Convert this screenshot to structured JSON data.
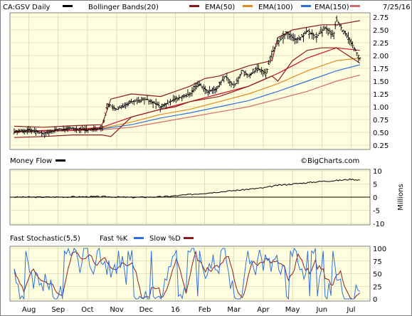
{
  "header": {
    "symbol_label": "CA:GSV Daily",
    "date_label": "7/25/16",
    "legend": [
      {
        "name": "Bollinger Bands(20)",
        "color": "#8b1a1a"
      },
      {
        "name": "EMA(50)",
        "color": "#c8102e"
      },
      {
        "name": "EMA(100)",
        "color": "#e08a1e"
      },
      {
        "name": "EMA(150)",
        "color": "#2f6fd8"
      }
    ]
  },
  "panels": {
    "money_flow": {
      "title": "Money Flow",
      "credit": "©BigCharts.com",
      "axis_label": "Millions"
    },
    "stochastic": {
      "title": "Fast Stochastic(5,5)",
      "fast_label": "Fast %K",
      "slow_label": "Slow %D"
    }
  },
  "colors": {
    "panel_bg": "#ffffe0",
    "price": "#000000",
    "bollinger": "#8b1a1a",
    "ema50": "#c8102e",
    "ema100": "#e08a1e",
    "ema150": "#2f6fd8",
    "ema_last": "#d46a6a",
    "fast_k": "#2f6fd8",
    "slow_d": "#8b1a1a"
  },
  "chart_data": [
    {
      "type": "line",
      "title": "CA:GSV Daily",
      "y_ticks": [
        "2.75",
        "2.50",
        "2.25",
        "2.00",
        "1.75",
        "1.50",
        "1.25",
        "1.00",
        "0.75",
        "0.50",
        "0.25"
      ],
      "ylim": [
        0.25,
        2.75
      ],
      "x_ticks": [
        "Aug",
        "Sep",
        "Oct",
        "Nov",
        "Dec",
        "16",
        "Feb",
        "Mar",
        "Apr",
        "May",
        "Jun",
        "Jul"
      ],
      "x_range": [
        0,
        12
      ],
      "series": [
        {
          "name": "CA:GSV Daily",
          "role": "price",
          "x": [
            0,
            0.5,
            1,
            1.5,
            2,
            2.5,
            3,
            3.2,
            3.5,
            4,
            4.5,
            5,
            5.5,
            6,
            6.3,
            6.6,
            6.9,
            7.2,
            7.5,
            7.8,
            8,
            8.3,
            8.6,
            8.8,
            9,
            9.3,
            9.6,
            9.9,
            10,
            10.3,
            10.6,
            10.9,
            11,
            11.2,
            11.4,
            11.6,
            11.8
          ],
          "y": [
            0.5,
            0.55,
            0.48,
            0.55,
            0.58,
            0.55,
            0.58,
            1.05,
            0.95,
            1.1,
            1.15,
            1.0,
            1.15,
            1.25,
            1.45,
            1.3,
            1.35,
            1.6,
            1.4,
            1.7,
            1.6,
            1.75,
            1.65,
            2.05,
            2.25,
            2.45,
            2.3,
            2.4,
            2.5,
            2.35,
            2.55,
            2.4,
            2.7,
            2.5,
            2.35,
            2.15,
            1.95
          ]
        },
        {
          "name": "Bollinger Bands(20)",
          "role": "bb_upper",
          "x": [
            0,
            1,
            2,
            3,
            3.3,
            4,
            5,
            5.5,
            6,
            6.5,
            7,
            7.5,
            8,
            8.8,
            9,
            9.5,
            10,
            10.5,
            11,
            11.8
          ],
          "y": [
            0.62,
            0.6,
            0.63,
            0.65,
            1.15,
            1.25,
            1.2,
            1.3,
            1.4,
            1.55,
            1.6,
            1.7,
            1.8,
            1.9,
            2.35,
            2.5,
            2.55,
            2.6,
            2.6,
            2.68
          ]
        },
        {
          "name": "Bollinger Bands(20)",
          "role": "bb_lower",
          "x": [
            0,
            1,
            2,
            3,
            3.3,
            4,
            5,
            5.5,
            6,
            6.5,
            7,
            7.5,
            8,
            8.8,
            9,
            9.5,
            10,
            10.5,
            11,
            11.8
          ],
          "y": [
            0.4,
            0.42,
            0.45,
            0.45,
            0.42,
            0.8,
            0.95,
            1.0,
            1.1,
            1.15,
            1.2,
            1.3,
            1.4,
            1.6,
            1.5,
            1.9,
            2.1,
            2.15,
            2.15,
            1.85
          ]
        },
        {
          "name": "EMA(50)",
          "role": "ema50",
          "x": [
            0,
            2,
            3,
            4,
            5,
            6,
            7,
            8,
            9,
            10,
            11,
            11.8
          ],
          "y": [
            0.52,
            0.55,
            0.6,
            0.8,
            0.95,
            1.1,
            1.25,
            1.4,
            1.65,
            1.95,
            2.15,
            2.1
          ]
        },
        {
          "name": "EMA(100)",
          "role": "ema100",
          "x": [
            0,
            2,
            3,
            4,
            5,
            6,
            7,
            8,
            9,
            10,
            11,
            11.8
          ],
          "y": [
            0.52,
            0.55,
            0.58,
            0.7,
            0.85,
            0.95,
            1.1,
            1.25,
            1.45,
            1.7,
            1.9,
            1.95
          ]
        },
        {
          "name": "EMA(150)",
          "role": "ema150",
          "x": [
            0,
            2,
            3,
            4,
            5,
            6,
            7,
            8,
            9,
            10,
            11,
            11.8
          ],
          "y": [
            0.52,
            0.55,
            0.57,
            0.65,
            0.78,
            0.88,
            1.0,
            1.12,
            1.3,
            1.5,
            1.7,
            1.82
          ]
        },
        {
          "name": "EMA(150)",
          "role": "ema_last",
          "x": [
            0,
            3,
            4,
            5,
            6,
            7,
            8,
            9,
            10,
            11,
            11.8
          ],
          "y": [
            0.5,
            0.55,
            0.6,
            0.7,
            0.8,
            0.9,
            1.0,
            1.15,
            1.3,
            1.5,
            1.62
          ]
        }
      ]
    },
    {
      "type": "line",
      "title": "Money Flow",
      "ylabel": "Millions",
      "y_ticks": [
        "10",
        "5",
        "0",
        "-5",
        "-10"
      ],
      "ylim": [
        -10,
        10
      ],
      "x_range": [
        0,
        12
      ],
      "series": [
        {
          "name": "Money Flow",
          "x": [
            0,
            1,
            2,
            3,
            4,
            5,
            5.5,
            6,
            6.5,
            7,
            7.5,
            8,
            8.5,
            9,
            9.5,
            10,
            10.5,
            11,
            11.5,
            11.8
          ],
          "y": [
            0,
            0,
            0.1,
            0.2,
            -0.1,
            0.1,
            0.5,
            1.0,
            1.5,
            2.0,
            2.5,
            3.0,
            3.5,
            4.5,
            5.0,
            5.5,
            6.0,
            6.3,
            6.8,
            6.5
          ]
        }
      ]
    },
    {
      "type": "line",
      "title": "Fast Stochastic(5,5)",
      "y_ticks": [
        "100",
        "75",
        "50",
        "25",
        "0"
      ],
      "ylim": [
        0,
        100
      ],
      "x_ticks": [
        "Aug",
        "Sep",
        "Oct",
        "Nov",
        "Dec",
        "16",
        "Feb",
        "Mar",
        "Apr",
        "May",
        "Jun",
        "Jul"
      ],
      "x_range": [
        0,
        12
      ],
      "series": [
        {
          "name": "Fast %K",
          "role": "fast_k",
          "seed": 7,
          "points": 180
        },
        {
          "name": "Slow %D",
          "role": "slow_d",
          "seed": 7,
          "points": 180
        }
      ]
    }
  ]
}
